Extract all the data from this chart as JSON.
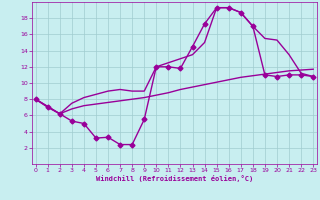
{
  "bg_color": "#c8eef0",
  "grid_color": "#a0ccd0",
  "line_color": "#990099",
  "line_width": 1.0,
  "marker": "D",
  "marker_size": 2.5,
  "xlim": [
    -0.3,
    23.3
  ],
  "ylim": [
    0,
    20
  ],
  "xticks": [
    0,
    1,
    2,
    3,
    4,
    5,
    6,
    7,
    8,
    9,
    10,
    11,
    12,
    13,
    14,
    15,
    16,
    17,
    18,
    19,
    20,
    21,
    22,
    23
  ],
  "yticks": [
    2,
    4,
    6,
    8,
    10,
    12,
    14,
    16,
    18
  ],
  "xlabel": "Windchill (Refroidissement éolien,°C)",
  "curve1_x": [
    0,
    1,
    2,
    3,
    4,
    5,
    6,
    7,
    8,
    9,
    10,
    11,
    12,
    13,
    14,
    15,
    16,
    17,
    18,
    19,
    20,
    21,
    22,
    23
  ],
  "curve1_y": [
    8.0,
    7.0,
    6.2,
    5.3,
    5.0,
    3.2,
    3.3,
    2.4,
    2.4,
    5.5,
    12.0,
    12.0,
    11.8,
    14.5,
    17.3,
    19.3,
    19.3,
    18.7,
    17.0,
    11.0,
    10.8,
    11.0,
    11.0,
    10.8
  ],
  "curve2_x": [
    0,
    2,
    3,
    4,
    5,
    6,
    7,
    8,
    9,
    10,
    11,
    12,
    13,
    14,
    15,
    16,
    17,
    18,
    19,
    20,
    21,
    22,
    23
  ],
  "curve2_y": [
    8.0,
    6.2,
    6.8,
    7.2,
    7.4,
    7.6,
    7.8,
    8.0,
    8.2,
    8.5,
    8.8,
    9.2,
    9.5,
    9.8,
    10.1,
    10.4,
    10.7,
    10.9,
    11.1,
    11.3,
    11.5,
    11.6,
    11.7
  ],
  "curve3_x": [
    0,
    2,
    3,
    4,
    5,
    6,
    7,
    8,
    9,
    10,
    11,
    12,
    13,
    14,
    15,
    16,
    17,
    18,
    19,
    20,
    21,
    22,
    23
  ],
  "curve3_y": [
    8.0,
    6.2,
    7.5,
    8.2,
    8.6,
    9.0,
    9.2,
    9.0,
    9.0,
    12.0,
    12.5,
    13.0,
    13.5,
    15.0,
    19.3,
    19.3,
    18.7,
    17.0,
    15.5,
    15.3,
    13.5,
    11.2,
    10.8
  ]
}
